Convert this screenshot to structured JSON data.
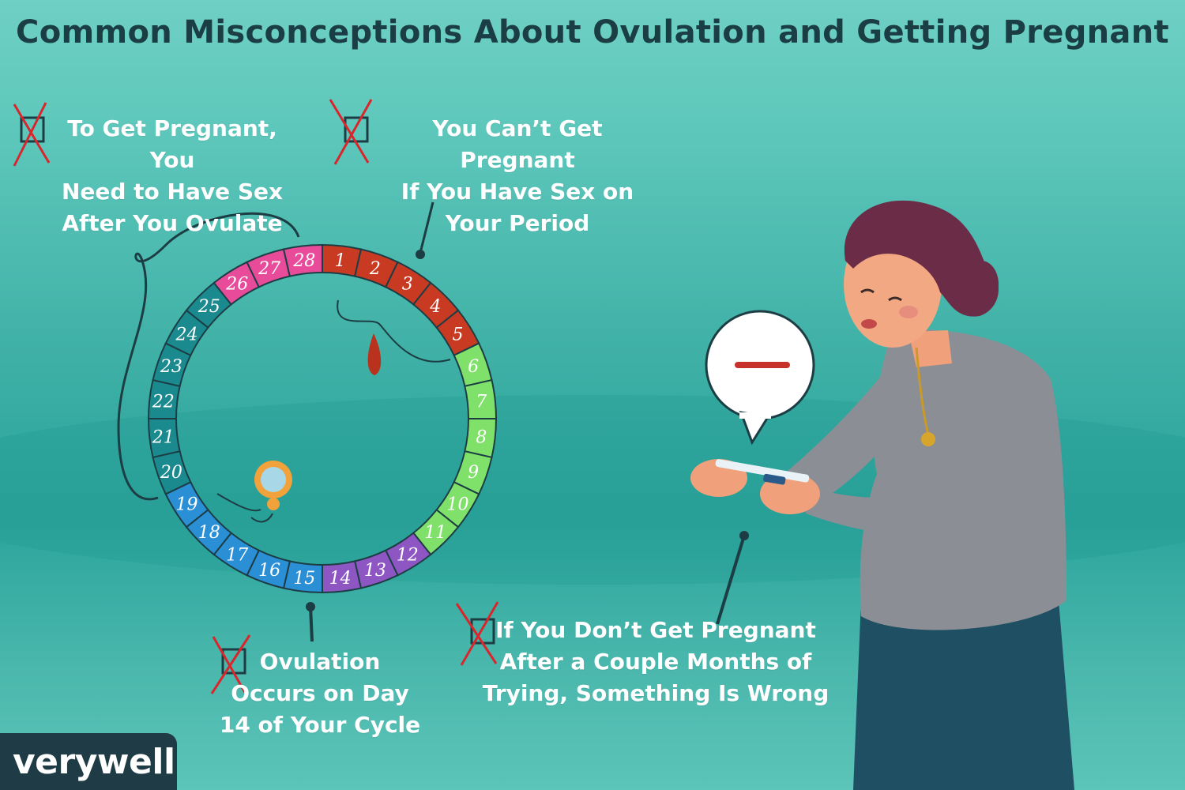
{
  "title": "Common Misconceptions About Ovulation and Getting Pregnant",
  "misconceptions": [
    {
      "text": "To Get Pregnant, You\nNeed to Have Sex\nAfter You Ovulate"
    },
    {
      "text": "You Can’t Get Pregnant\nIf You Have Sex on\nYour Period"
    },
    {
      "text": "Ovulation\nOccurs on Day\n14 of Your Cycle"
    },
    {
      "text": "If You Don’t Get Pregnant\nAfter a Couple Months of\nTrying, Something Is Wrong"
    }
  ],
  "cycle": {
    "days": [
      "1",
      "2",
      "3",
      "4",
      "5",
      "6",
      "7",
      "8",
      "9",
      "10",
      "11",
      "12",
      "13",
      "14",
      "15",
      "16",
      "17",
      "18",
      "19",
      "20",
      "21",
      "22",
      "23",
      "24",
      "25",
      "26",
      "27",
      "28"
    ],
    "phase_colors": {
      "period": "#c93a22",
      "follicular": "#7fe06a",
      "ovulation": "#8e56c2",
      "luteal_blue": "#2b8fd6",
      "luteal_teal": "#1a8a8e",
      "premenstrual": "#e94b9b"
    }
  },
  "test_result_symbol": "negative-dash",
  "brand": {
    "part1": "very",
    "part2": "well"
  }
}
